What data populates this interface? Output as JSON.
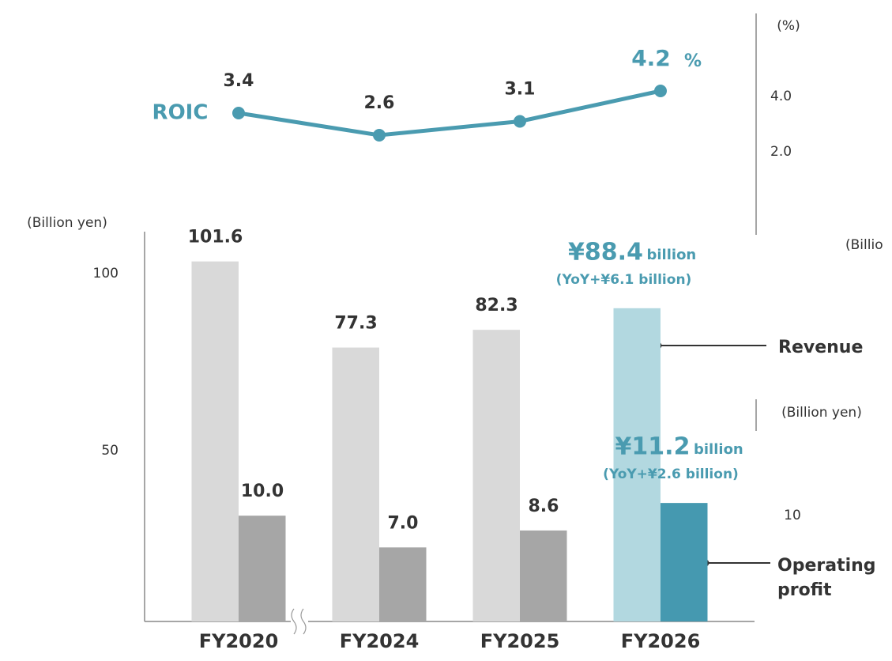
{
  "chart_data": [
    {
      "type": "line",
      "categories": [
        "FY2020",
        "FY2024",
        "FY2025",
        "FY2026"
      ],
      "series": [
        {
          "name": "ROIC",
          "color": "#4a9bb0",
          "values": [
            3.4,
            2.6,
            3.1,
            4.2
          ]
        }
      ],
      "y_label": "(%)",
      "ylim": [
        -1,
        7
      ],
      "yticks": [
        {
          "value": 2,
          "label": "2.0"
        },
        {
          "value": 4,
          "label": "4.0"
        }
      ],
      "annotations": [
        "%"
      ]
    },
    {
      "type": "bar",
      "categories": [
        "FY2020",
        "FY2024",
        "FY2025",
        "FY2026"
      ],
      "y_label": "(Billion yen)",
      "ylim": [
        0,
        110
      ],
      "yticks": [
        50,
        100
      ],
      "y2_label": "(Billion yen)",
      "y2lim": [
        0,
        21
      ],
      "y2ticks": [
        10
      ],
      "series": [
        {
          "name": "Revenue",
          "colors": [
            "#d9d9d9",
            "#d9d9d9",
            "#d9d9d9",
            "#b2d8e0"
          ],
          "values": [
            101.6,
            77.3,
            82.3,
            88.4
          ],
          "value_labels": [
            "101.6",
            "77.3",
            "82.3",
            "¥88.4"
          ]
        },
        {
          "name": "Operating profit",
          "axis": "y2",
          "colors": [
            "#a6a6a6",
            "#a6a6a6",
            "#a6a6a6",
            "#4599b0"
          ],
          "values": [
            10.0,
            7.0,
            8.6,
            11.2
          ],
          "value_labels": [
            "10.0",
            "7.0",
            "8.6",
            "¥11.2"
          ]
        }
      ],
      "annotations": [
        "billion",
        "(YoY+¥6.1 billion)",
        "billion",
        "(YoY+¥2.6 billion)",
        "(Billio"
      ]
    }
  ]
}
